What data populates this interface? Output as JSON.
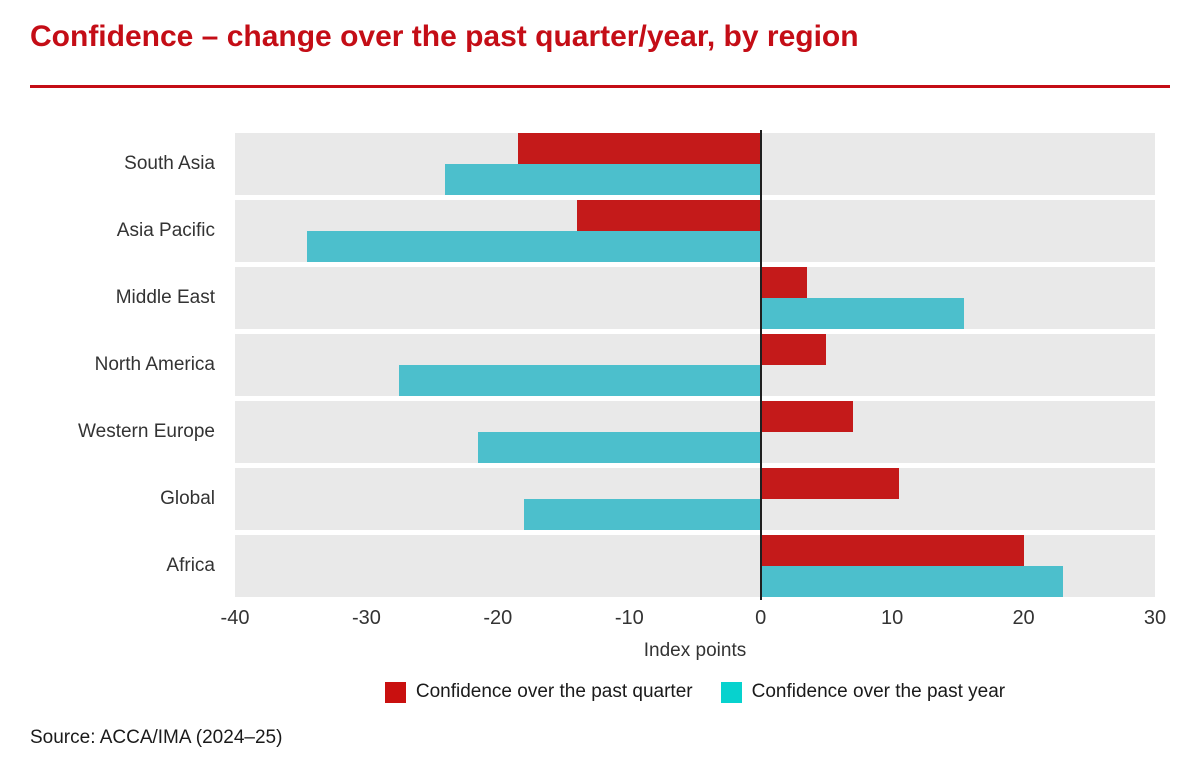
{
  "title": "Confidence – change over the past quarter/year, by region",
  "source": "Source: ACCA/IMA (2024–25)",
  "colors": {
    "brand_red": "#c40d16",
    "band_gray": "#e9e9e9",
    "zero_line": "#1f1f1f",
    "text_dark": "#333333"
  },
  "chart_data": {
    "type": "bar",
    "orientation": "horizontal",
    "title": "Confidence – change over the past quarter/year, by region",
    "categories": [
      "South Asia",
      "Asia Pacific",
      "Middle East",
      "North America",
      "Western Europe",
      "Global",
      "Africa"
    ],
    "series": [
      {
        "name": "Confidence over the past quarter",
        "color": "#c41a1a",
        "legend_color": "#c9100f",
        "values": [
          -18.5,
          -14,
          3.5,
          5,
          7,
          10.5,
          20
        ]
      },
      {
        "name": "Confidence over the past year",
        "color": "#4cbfcc",
        "legend_color": "#07d2ce",
        "values": [
          -24,
          -34.5,
          15.5,
          -27.5,
          -21.5,
          -18,
          23
        ]
      }
    ],
    "xlabel": "Index points",
    "xlim": [
      -40,
      30
    ],
    "xticks": [
      -40,
      -30,
      -20,
      -10,
      0,
      10,
      20,
      30
    ],
    "grid": false,
    "legend_position": "bottom"
  }
}
